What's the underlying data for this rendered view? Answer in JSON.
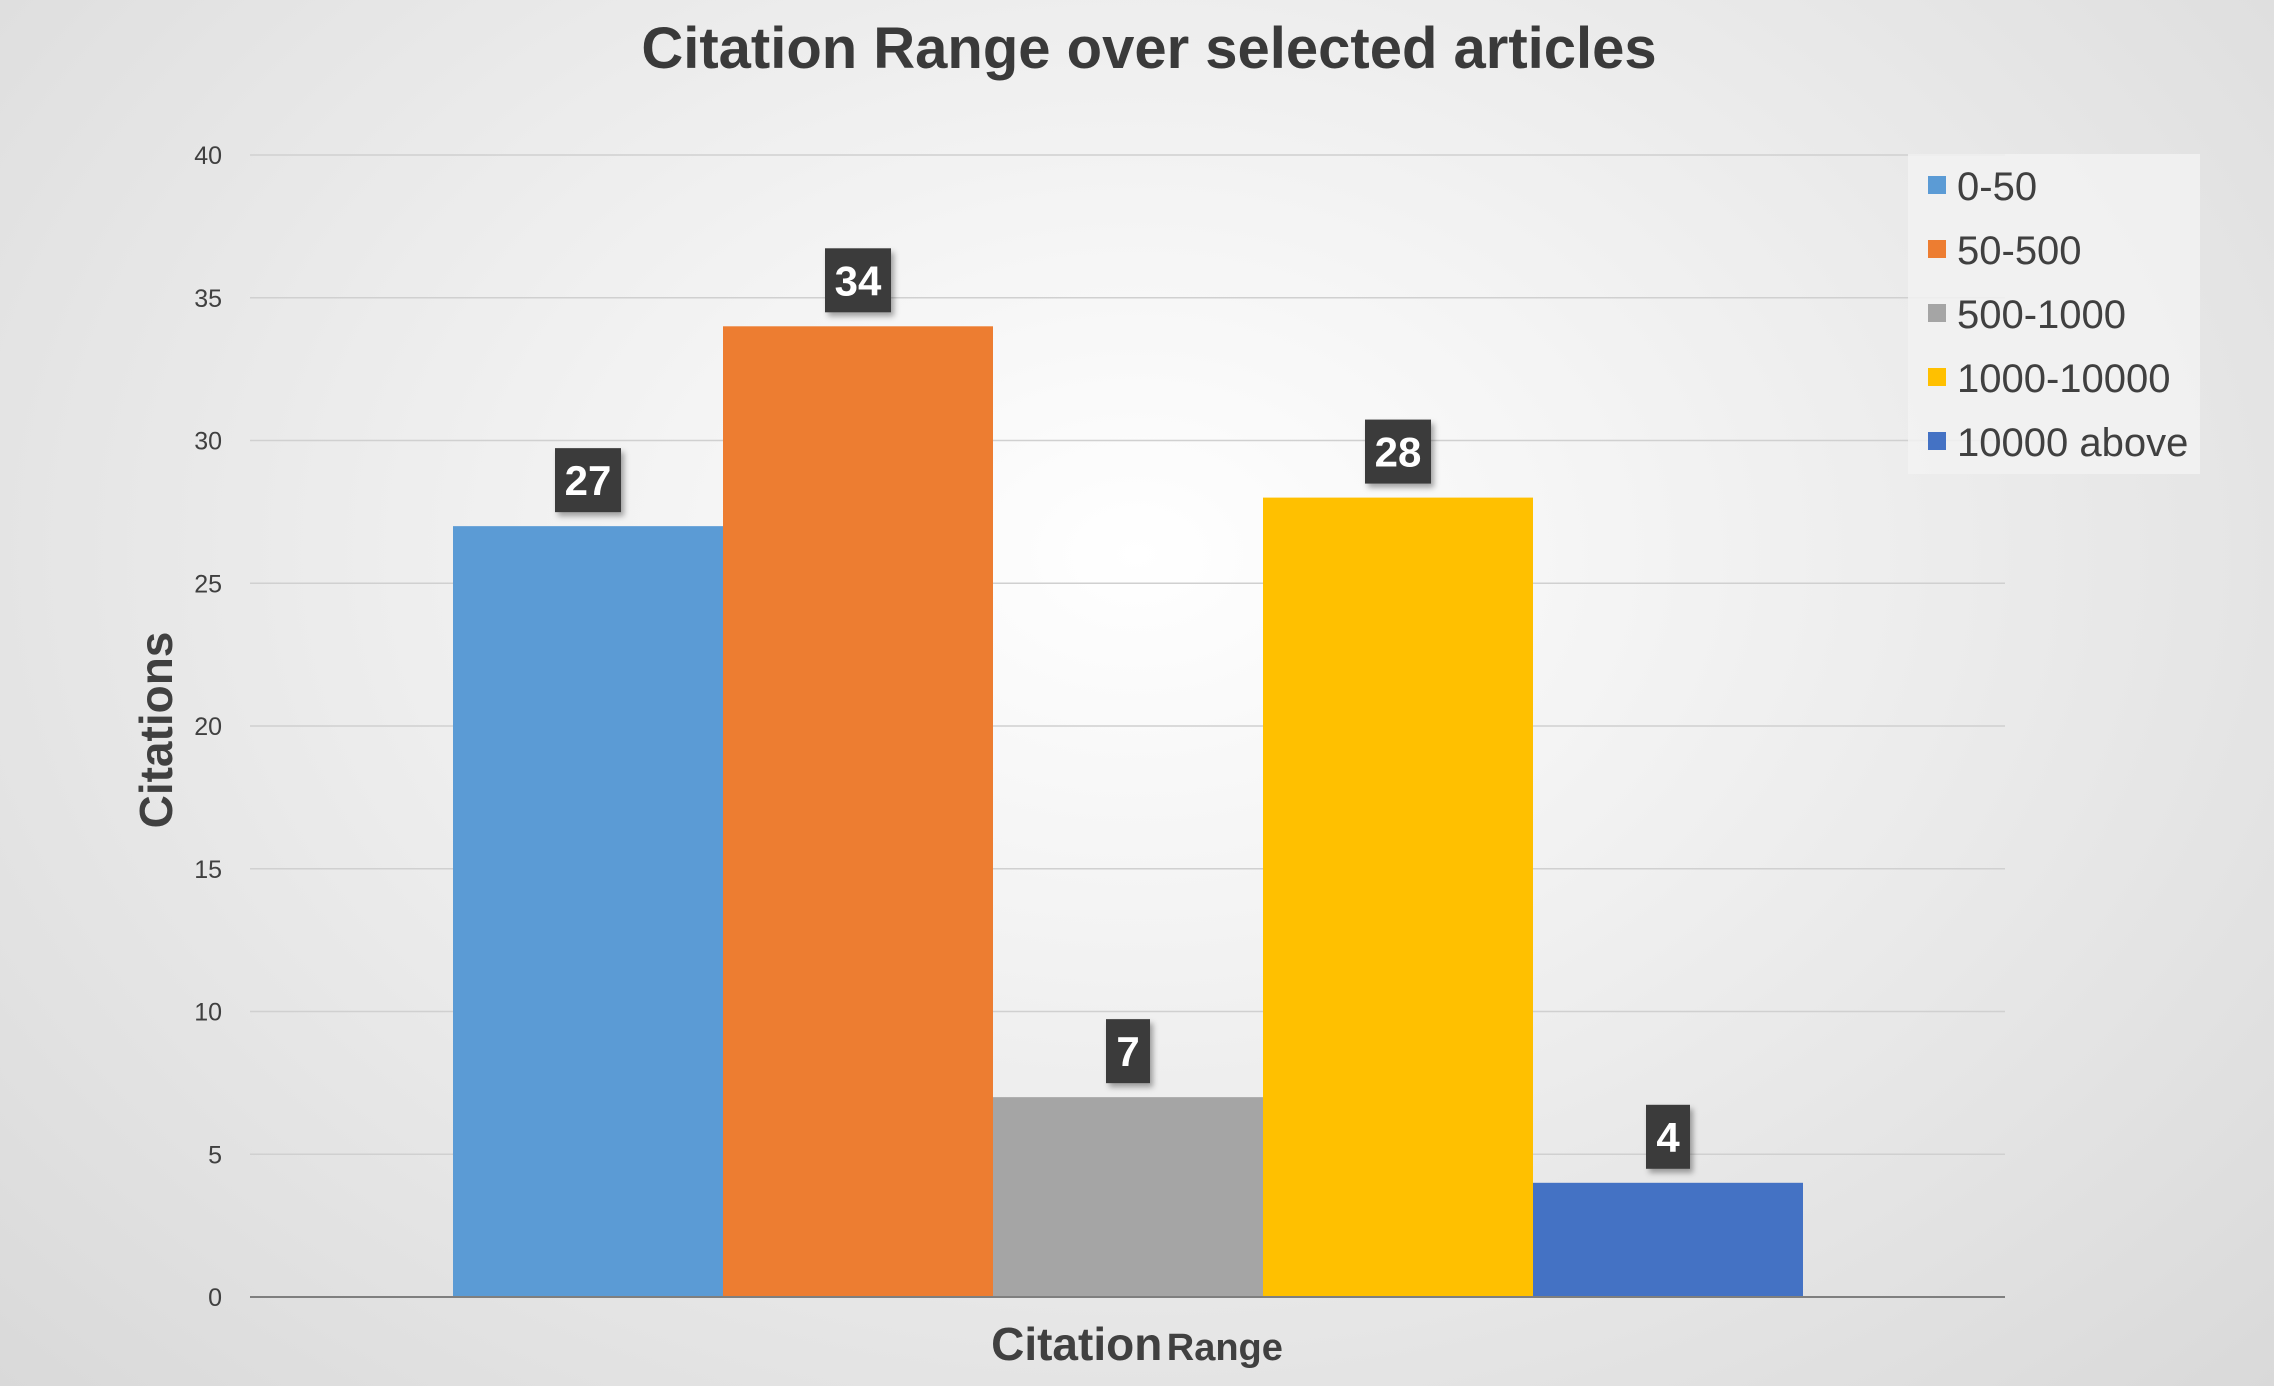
{
  "chart_data": {
    "type": "bar",
    "title": "Citation Range over selected articles",
    "xlabel": {
      "main": "Citation",
      "suffix": "Range"
    },
    "ylabel": "Citations",
    "ylim": [
      0,
      40
    ],
    "yticks": [
      "0",
      "5",
      "10",
      "15",
      "20",
      "25",
      "30",
      "35",
      "40"
    ],
    "grid": true,
    "legend_position": "top-right",
    "series": [
      {
        "name": "0-50",
        "value": 27,
        "label": "27",
        "color": "#5b9bd5"
      },
      {
        "name": "50-500",
        "value": 34,
        "label": "34",
        "color": "#ed7d31"
      },
      {
        "name": "500-1000",
        "value": 7,
        "label": "7",
        "color": "#a5a5a5"
      },
      {
        "name": "1000-10000",
        "value": 28,
        "label": "28",
        "color": "#ffc000"
      },
      {
        "name": "10000 above",
        "value": 4,
        "label": "4",
        "color": "#4472c4"
      }
    ]
  }
}
